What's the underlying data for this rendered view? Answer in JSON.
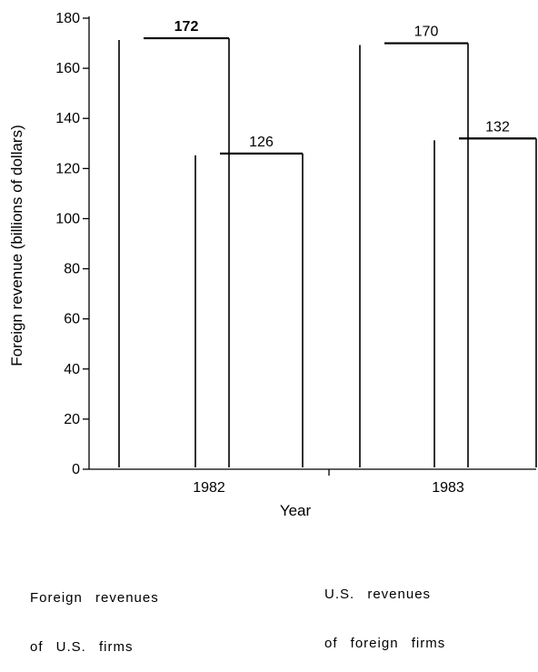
{
  "chart_data": {
    "type": "bar",
    "title": "",
    "ylabel": "Foreign revenue (billions of dollars)",
    "xlabel": "Year",
    "ylim": [
      0,
      180
    ],
    "yticks": [
      0,
      20,
      40,
      60,
      80,
      100,
      120,
      140,
      160,
      180
    ],
    "categories": [
      "1982",
      "1983"
    ],
    "series": [
      {
        "name": "Foreign revenues of U.S. firms",
        "values": [
          172,
          170
        ]
      },
      {
        "name": "U.S. revenues of foreign firms",
        "values": [
          126,
          132
        ]
      }
    ],
    "data_labels": [
      [
        "172",
        "170"
      ],
      [
        "126",
        "132"
      ]
    ],
    "grid": false,
    "legend": "bottom"
  },
  "legend": {
    "left_line1": "Foreign revenues",
    "left_line2": "of U.S. firms",
    "right_line1": "U.S. revenues",
    "right_line2": "of foreign firms"
  }
}
